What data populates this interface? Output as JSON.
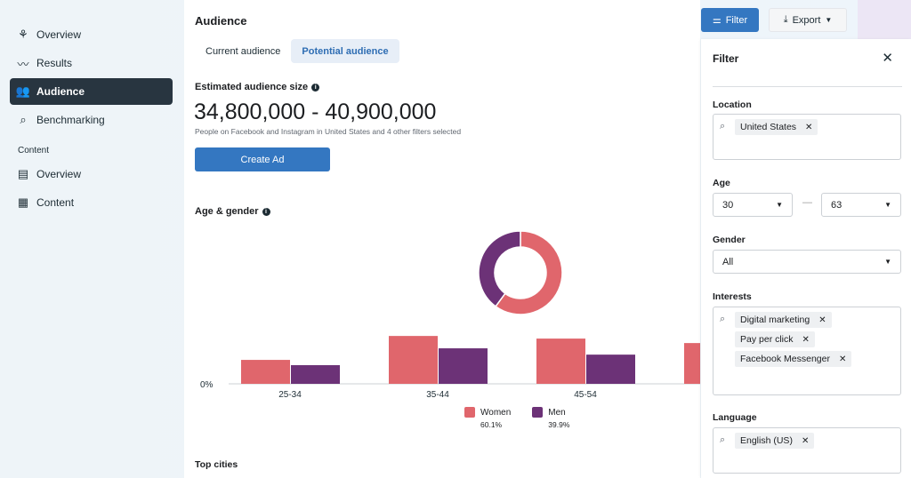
{
  "sidebar": {
    "items": [
      {
        "label": "Overview",
        "icon": "network-icon"
      },
      {
        "label": "Results",
        "icon": "trend-line-icon"
      },
      {
        "label": "Audience",
        "icon": "people-icon",
        "active": true
      },
      {
        "label": "Benchmarking",
        "icon": "list-search-icon"
      }
    ],
    "section": "Content",
    "content_items": [
      {
        "label": "Overview",
        "icon": "content-overview-icon"
      },
      {
        "label": "Content",
        "icon": "table-icon"
      }
    ]
  },
  "main": {
    "title": "Audience",
    "tabs": [
      {
        "label": "Current audience"
      },
      {
        "label": "Potential audience",
        "selected": true
      }
    ],
    "estimated_label": "Estimated audience size",
    "range": "34,800,000 - 40,900,000",
    "range_subtitle": "People on Facebook and Instagram in United States and 4 other filters selected",
    "create_ad": "Create Ad",
    "age_gender_label": "Age & gender",
    "top_cities": "Top cities"
  },
  "toolbar": {
    "filter": "Filter",
    "export": "Export"
  },
  "chart_data": {
    "type": "bar",
    "categories": [
      "25-34",
      "35-44",
      "45-54"
    ],
    "series": [
      {
        "name": "Women",
        "color": "#e0666c",
        "values": [
          9.1,
          18.2,
          17.2
        ]
      },
      {
        "name": "Men",
        "color": "#6c3277",
        "values": [
          7.1,
          13.5,
          11.1
        ]
      }
    ],
    "partial_category_values": {
      "Women": 15.5
    },
    "y_tick": "0%",
    "donut": {
      "Women": 60.1,
      "Men": 39.9
    },
    "legend": [
      {
        "name": "Women",
        "pct": "60.1%"
      },
      {
        "name": "Men",
        "pct": "39.9%"
      }
    ]
  },
  "filter": {
    "title": "Filter",
    "location_label": "Location",
    "location": [
      "United States"
    ],
    "age_label": "Age",
    "age_min": "30",
    "age_max": "63",
    "age_sep": "—",
    "gender_label": "Gender",
    "gender": "All",
    "interests_label": "Interests",
    "interests": [
      "Digital marketing",
      "Pay per click",
      "Facebook Messenger"
    ],
    "language_label": "Language",
    "language": [
      "English (US)"
    ]
  }
}
